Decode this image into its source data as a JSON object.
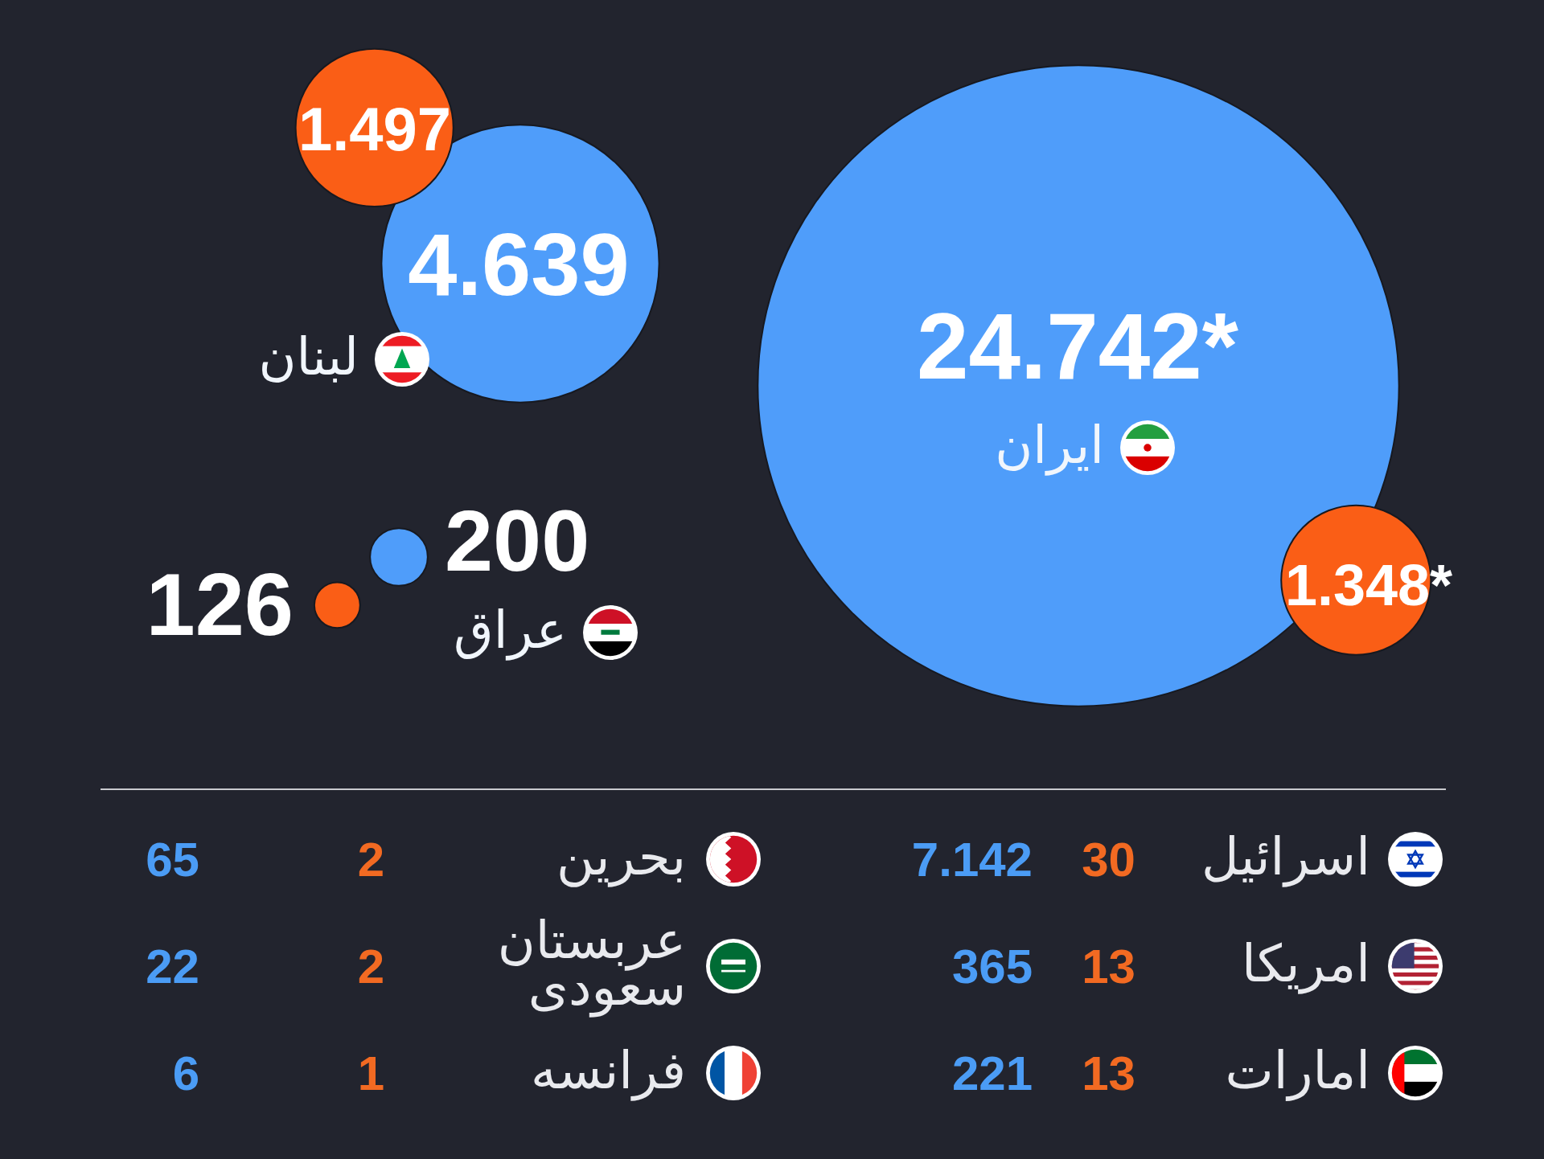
{
  "chart_data": [
    {
      "type": "other",
      "categories": [
        "ایران",
        "لبنان",
        "عراق"
      ],
      "series": [
        {
          "color": "#4f9dfa",
          "values": [
            24742,
            4639,
            200
          ],
          "value_labels": [
            "24.742*",
            "4.639",
            "200"
          ]
        },
        {
          "color": "#fa5e16",
          "values": [
            1348,
            1497,
            126
          ],
          "value_labels": [
            "1.348*",
            "1.497",
            "126"
          ]
        }
      ]
    },
    {
      "type": "other",
      "categories": [
        "اسرائیل",
        "امریکا",
        "امارات"
      ],
      "series": [
        {
          "color": "#f26a22",
          "values": [
            30,
            13,
            13
          ],
          "value_labels": [
            "30",
            "13",
            "13"
          ]
        },
        {
          "color": "#4b9cf5",
          "values": [
            7142,
            365,
            221
          ],
          "value_labels": [
            "7.142",
            "365",
            "221"
          ]
        }
      ]
    },
    {
      "type": "other",
      "categories": [
        "بحرین",
        "عربستان سعودی",
        "فرانسه"
      ],
      "series": [
        {
          "color": "#f26a22",
          "values": [
            2,
            2,
            1
          ],
          "value_labels": [
            "2",
            "2",
            "1"
          ]
        },
        {
          "color": "#4b9cf5",
          "values": [
            65,
            22,
            6
          ],
          "value_labels": [
            "65",
            "22",
            "6"
          ]
        }
      ]
    }
  ]
}
